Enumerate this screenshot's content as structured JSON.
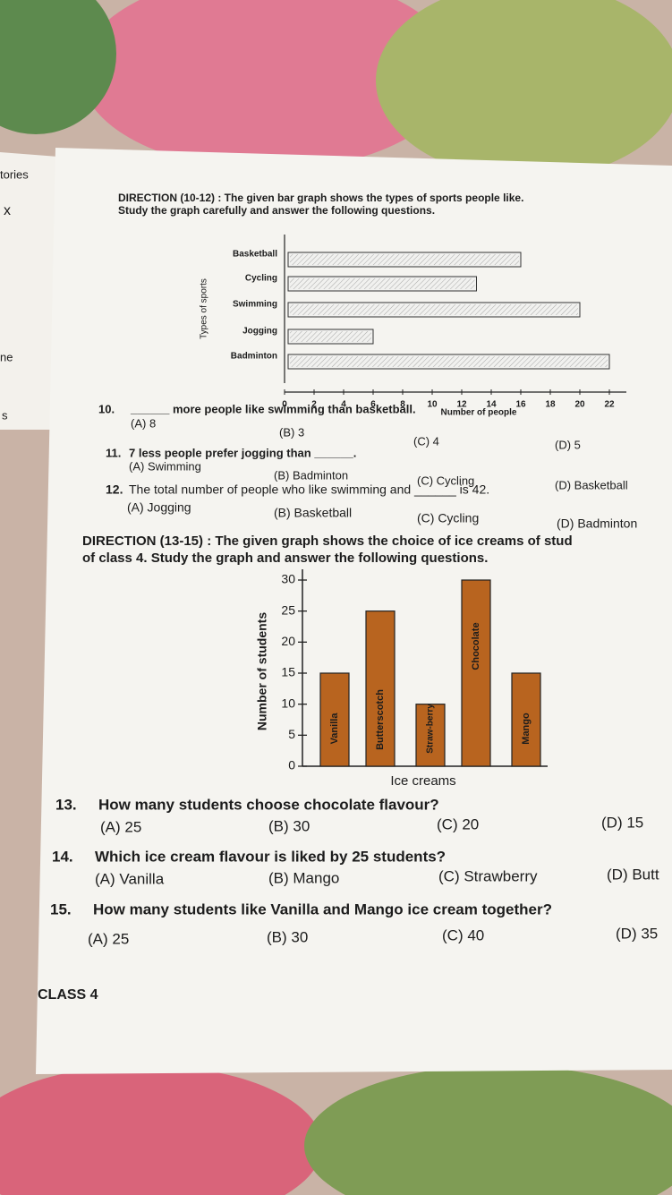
{
  "side_page": {
    "lines": [
      "tories",
      "x",
      "ne",
      "s"
    ]
  },
  "directions": [
    {
      "lines": [
        "DIRECTION (10-12) : The given bar graph shows the types of sports people like.",
        "Study the graph carefully and answer the following questions."
      ]
    },
    {
      "lines": [
        "DIRECTION (13-15) : The given graph shows the choice of ice creams of stud",
        "of class 4. Study the graph and answer the following questions."
      ]
    }
  ],
  "chart_data": [
    {
      "type": "bar",
      "orientation": "horizontal",
      "categories": [
        "Basketball",
        "Cycling",
        "Swimming",
        "Jogging",
        "Badminton"
      ],
      "values": [
        16,
        13,
        20,
        6,
        22
      ],
      "color": "#f1f1ef",
      "xlim": [
        0,
        22
      ],
      "xticks": [
        0,
        2,
        4,
        6,
        8,
        10,
        12,
        14,
        16,
        18,
        20,
        22
      ],
      "xlabel": "Number of people",
      "ylabel": "Types of sports"
    },
    {
      "type": "bar",
      "orientation": "vertical",
      "categories": [
        "Vanilla",
        "Butterscotch",
        "Straw-berry",
        "Chocolate",
        "Mango"
      ],
      "values": [
        15,
        25,
        10,
        30,
        15
      ],
      "color": "#b8641f",
      "ylim": [
        0,
        30
      ],
      "yticks": [
        0,
        5,
        10,
        15,
        20,
        25,
        30
      ],
      "xlabel": "Ice creams",
      "ylabel": "Number of students"
    }
  ],
  "questions": [
    {
      "number": "10.",
      "text": "______ more people like swimming than basketball.",
      "options": [
        "(A) 8",
        "(B) 3",
        "(C) 4",
        "(D) 5"
      ]
    },
    {
      "number": "11.",
      "text": "7 less people prefer jogging than ______.",
      "options": [
        "(A) Swimming",
        "(B) Badminton",
        "(C) Cycling",
        "(D) Basketball"
      ]
    },
    {
      "number": "12.",
      "text": "The total number of people who like swimming and ______ is 42.",
      "options": [
        "(A) Jogging",
        "(B) Basketball",
        "(C) Cycling",
        "(D) Badminton"
      ]
    },
    {
      "number": "13.",
      "text": "How many students choose chocolate flavour?",
      "options": [
        "(A) 25",
        "(B) 30",
        "(C) 20",
        "(D) 15"
      ]
    },
    {
      "number": "14.",
      "text": "Which ice cream flavour is liked by 25 students?",
      "options": [
        "(A) Vanilla",
        "(B) Mango",
        "(C) Strawberry",
        "(D) Butt"
      ]
    },
    {
      "number": "15.",
      "text": "How many students like Vanilla and Mango ice cream together?",
      "options": [
        "(A) 25",
        "(B) 30",
        "(C) 40",
        "(D) 35"
      ]
    }
  ],
  "footer": "CLASS 4"
}
